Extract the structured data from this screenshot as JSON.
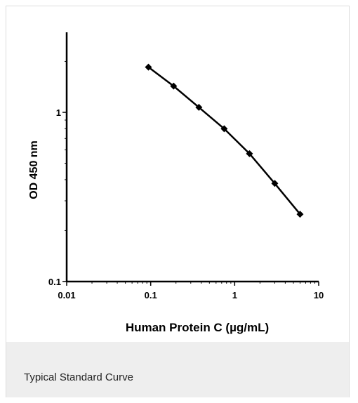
{
  "caption": "Typical Standard Curve",
  "chart_data": {
    "type": "line",
    "title": "",
    "xlabel": "Human Protein C (µg/mL)",
    "ylabel": "OD 450 nm",
    "xscale": "log",
    "yscale": "log",
    "xlim": [
      0.01,
      10
    ],
    "ylim": [
      0.1,
      3
    ],
    "x_ticks": [
      {
        "value": 0.01,
        "label": "0.01"
      },
      {
        "value": 0.1,
        "label": "0.1"
      },
      {
        "value": 1,
        "label": "1"
      },
      {
        "value": 10,
        "label": "10"
      }
    ],
    "y_ticks": [
      {
        "value": 0.1,
        "label": "0.1"
      },
      {
        "value": 1,
        "label": "1"
      }
    ],
    "grid": false,
    "legend": "none",
    "series": [
      {
        "color": "#000000",
        "marker": "diamond",
        "x": [
          0.094,
          0.1875,
          0.375,
          0.75,
          1.5,
          3,
          6
        ],
        "y": [
          1.85,
          1.43,
          1.07,
          0.8,
          0.57,
          0.38,
          0.25
        ]
      }
    ]
  }
}
